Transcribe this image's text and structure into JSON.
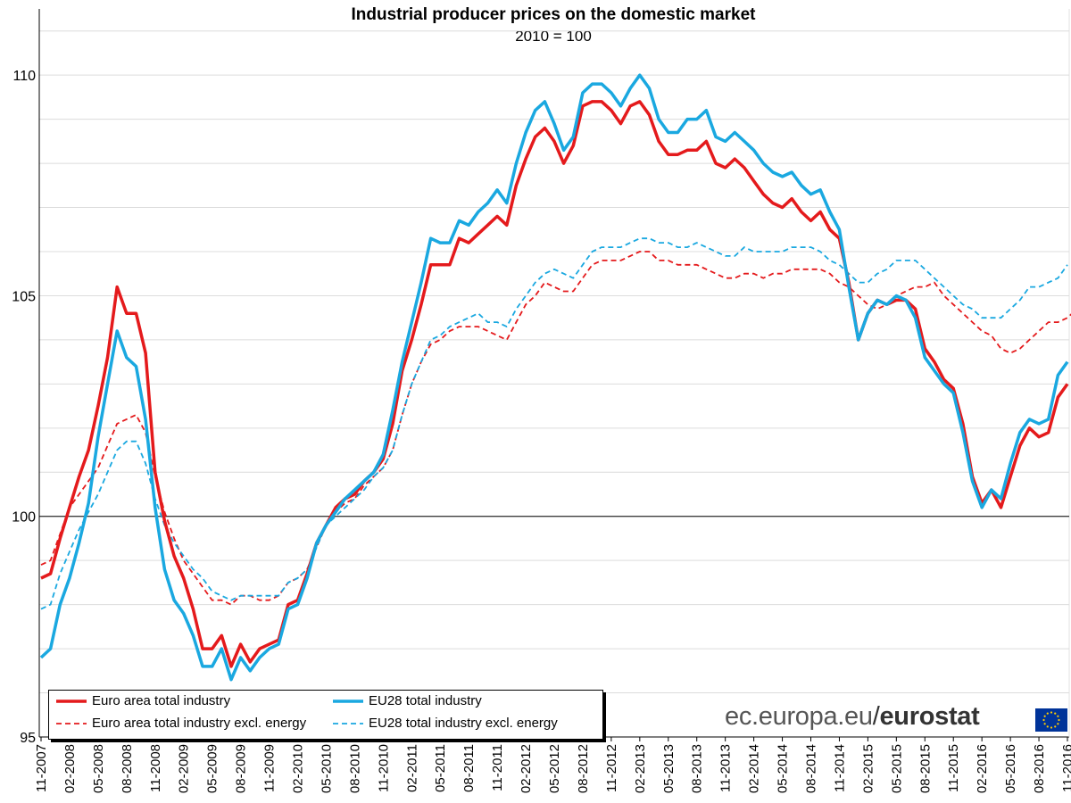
{
  "chart_data": {
    "type": "line",
    "title": "Industrial producer prices on the domestic market",
    "subtitle": "2010 = 100",
    "xlabel": "",
    "ylabel": "",
    "ylim": [
      95,
      111.5
    ],
    "yticks": [
      95,
      100,
      105,
      110
    ],
    "grid": true,
    "legend_position": "bottom-left",
    "x_tick_labels": [
      "11-2007",
      "02-2008",
      "05-2008",
      "08-2008",
      "11-2008",
      "02-2009",
      "05-2009",
      "08-2009",
      "11-2009",
      "02-2010",
      "05-2010",
      "08-2010",
      "11-2010",
      "02-2011",
      "05-2011",
      "08-2011",
      "11-2011",
      "02-2012",
      "05-2012",
      "08-2012",
      "11-2012",
      "02-2013",
      "05-2013",
      "08-2013",
      "11-2013",
      "02-2014",
      "05-2014",
      "08-2014",
      "11-2014",
      "02-2015",
      "05-2015",
      "08-2015",
      "11-2015",
      "02-2016",
      "05-2016",
      "08-2016",
      "11-2016"
    ],
    "x_start": "11-2007",
    "x_end": "11-2016",
    "series": [
      {
        "name": "Euro area total industry",
        "color": "#e41a1c",
        "dash": "solid",
        "values": [
          98.6,
          98.7,
          99.5,
          100.2,
          100.9,
          101.5,
          102.5,
          103.6,
          105.2,
          104.6,
          104.6,
          103.7,
          101.0,
          99.9,
          99.1,
          98.6,
          97.9,
          97.0,
          97.0,
          97.3,
          96.6,
          97.1,
          96.7,
          97.0,
          97.1,
          97.2,
          98.0,
          98.1,
          98.7,
          99.4,
          99.8,
          100.2,
          100.4,
          100.5,
          100.8,
          101.0,
          101.3,
          102.1,
          103.3,
          104.0,
          104.8,
          105.7,
          105.7,
          105.7,
          106.3,
          106.2,
          106.4,
          106.6,
          106.8,
          106.6,
          107.5,
          108.1,
          108.6,
          108.8,
          108.5,
          108.0,
          108.4,
          109.3,
          109.4,
          109.4,
          109.2,
          108.9,
          109.3,
          109.4,
          109.1,
          108.5,
          108.2,
          108.2,
          108.3,
          108.3,
          108.5,
          108.0,
          107.9,
          108.1,
          107.9,
          107.6,
          107.3,
          107.1,
          107.0,
          107.2,
          106.9,
          106.7,
          106.9,
          106.5,
          106.3,
          105.3,
          104.0,
          104.6,
          104.9,
          104.8,
          104.9,
          104.9,
          104.7,
          103.8,
          103.5,
          103.1,
          102.9,
          102.1,
          100.9,
          100.3,
          100.6,
          100.2,
          100.9,
          101.6,
          102.0,
          101.8,
          101.9,
          102.7,
          103.0
        ]
      },
      {
        "name": "EU28 total industry",
        "color": "#1aa8e0",
        "dash": "solid",
        "values": [
          96.8,
          97.0,
          98.0,
          98.6,
          99.4,
          100.3,
          101.8,
          103.0,
          104.2,
          103.6,
          103.4,
          102.2,
          100.2,
          98.8,
          98.1,
          97.8,
          97.3,
          96.6,
          96.6,
          97.0,
          96.3,
          96.8,
          96.5,
          96.8,
          97.0,
          97.1,
          97.9,
          98.0,
          98.6,
          99.4,
          99.8,
          100.1,
          100.4,
          100.6,
          100.8,
          101.0,
          101.4,
          102.4,
          103.5,
          104.4,
          105.3,
          106.3,
          106.2,
          106.2,
          106.7,
          106.6,
          106.9,
          107.1,
          107.4,
          107.1,
          108.0,
          108.7,
          109.2,
          109.4,
          108.9,
          108.3,
          108.6,
          109.6,
          109.8,
          109.8,
          109.6,
          109.3,
          109.7,
          110.0,
          109.7,
          109.0,
          108.7,
          108.7,
          109.0,
          109.0,
          109.2,
          108.6,
          108.5,
          108.7,
          108.5,
          108.3,
          108.0,
          107.8,
          107.7,
          107.8,
          107.5,
          107.3,
          107.4,
          106.9,
          106.5,
          105.2,
          104.0,
          104.6,
          104.9,
          104.8,
          105.0,
          104.9,
          104.5,
          103.6,
          103.3,
          103.0,
          102.8,
          101.9,
          100.8,
          100.2,
          100.6,
          100.4,
          101.2,
          101.9,
          102.2,
          102.1,
          102.2,
          103.2,
          103.5
        ]
      },
      {
        "name": "Euro area total industry excl. energy",
        "color": "#e41a1c",
        "dash": "dashed",
        "values": [
          98.9,
          99.0,
          99.6,
          100.2,
          100.5,
          100.8,
          101.1,
          101.6,
          102.1,
          102.2,
          102.3,
          101.9,
          100.9,
          100.1,
          99.5,
          99.0,
          98.7,
          98.4,
          98.1,
          98.1,
          98.0,
          98.2,
          98.2,
          98.1,
          98.1,
          98.2,
          98.5,
          98.6,
          98.8,
          99.3,
          99.8,
          100.1,
          100.3,
          100.4,
          100.7,
          100.9,
          101.1,
          101.5,
          102.3,
          103.0,
          103.5,
          103.9,
          104.0,
          104.2,
          104.3,
          104.3,
          104.3,
          104.2,
          104.1,
          104.0,
          104.4,
          104.8,
          105.0,
          105.3,
          105.2,
          105.1,
          105.1,
          105.4,
          105.7,
          105.8,
          105.8,
          105.8,
          105.9,
          106.0,
          106.0,
          105.8,
          105.8,
          105.7,
          105.7,
          105.7,
          105.6,
          105.5,
          105.4,
          105.4,
          105.5,
          105.5,
          105.4,
          105.5,
          105.5,
          105.6,
          105.6,
          105.6,
          105.6,
          105.5,
          105.3,
          105.2,
          105.0,
          104.8,
          104.7,
          104.8,
          105.0,
          105.1,
          105.2,
          105.2,
          105.3,
          105.0,
          104.8,
          104.6,
          104.4,
          104.2,
          104.1,
          103.8,
          103.7,
          103.8,
          104.0,
          104.2,
          104.4,
          104.4,
          104.5,
          104.7
        ]
      },
      {
        "name": "EU28 total industry excl. energy",
        "color": "#1aa8e0",
        "dash": "dashed",
        "values": [
          97.9,
          98.0,
          98.7,
          99.2,
          99.7,
          100.1,
          100.5,
          101.0,
          101.5,
          101.7,
          101.7,
          101.2,
          100.4,
          99.8,
          99.4,
          99.1,
          98.8,
          98.6,
          98.3,
          98.2,
          98.1,
          98.2,
          98.2,
          98.2,
          98.2,
          98.2,
          98.5,
          98.6,
          98.8,
          99.3,
          99.8,
          100.0,
          100.2,
          100.4,
          100.6,
          100.9,
          101.1,
          101.5,
          102.3,
          103.0,
          103.5,
          104.0,
          104.1,
          104.3,
          104.4,
          104.5,
          104.6,
          104.4,
          104.4,
          104.3,
          104.7,
          105.0,
          105.3,
          105.5,
          105.6,
          105.5,
          105.4,
          105.7,
          106.0,
          106.1,
          106.1,
          106.1,
          106.2,
          106.3,
          106.3,
          106.2,
          106.2,
          106.1,
          106.1,
          106.2,
          106.1,
          106.0,
          105.9,
          105.9,
          106.1,
          106.0,
          106.0,
          106.0,
          106.0,
          106.1,
          106.1,
          106.1,
          106.0,
          105.8,
          105.7,
          105.5,
          105.3,
          105.3,
          105.5,
          105.6,
          105.8,
          105.8,
          105.8,
          105.6,
          105.4,
          105.2,
          105.0,
          104.8,
          104.7,
          104.5,
          104.5,
          104.5,
          104.7,
          104.9,
          105.2,
          105.2,
          105.3,
          105.4,
          105.7
        ]
      }
    ]
  },
  "branding": {
    "site": "ec.europa.eu",
    "slash": "/",
    "name": "eurostat",
    "flag_color": "#003399",
    "star_color": "#ffcc00",
    "flag_icon": "eu-flag-icon"
  }
}
